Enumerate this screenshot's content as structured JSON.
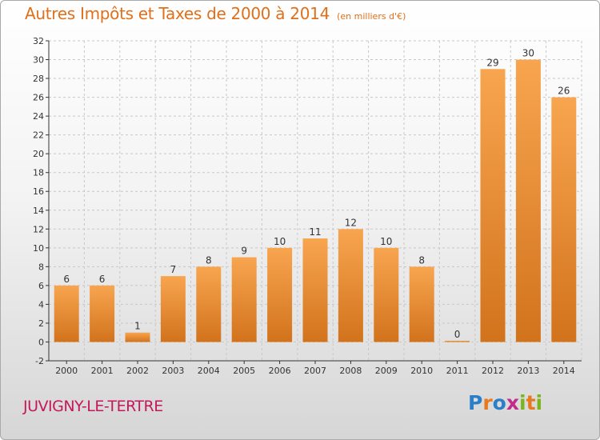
{
  "title": "Autres Impôts et Taxes de 2000 à 2014",
  "unit_note": "(en milliers d'€)",
  "town_name": "JUVIGNY-LE-TERTRE",
  "logo_text": "Proxiti",
  "colors": {
    "title": "#df6f1b",
    "town": "#c4185b",
    "bar_light": "#f8a550",
    "bar_dark": "#d2731c",
    "grid": "#c8c8c8",
    "axis": "#333333"
  },
  "chart_data": {
    "type": "bar",
    "title": "Autres Impôts et Taxes de 2000 à 2014",
    "ylabel": "",
    "xlabel": "",
    "categories": [
      "2000",
      "2001",
      "2002",
      "2003",
      "2004",
      "2005",
      "2006",
      "2007",
      "2008",
      "2009",
      "2010",
      "2011",
      "2012",
      "2013",
      "2014"
    ],
    "values": [
      6,
      6,
      1,
      7,
      8,
      9,
      10,
      11,
      12,
      10,
      8,
      0,
      29,
      30,
      26
    ],
    "ylim": [
      -2,
      32
    ],
    "yticks": [
      -2,
      0,
      2,
      4,
      6,
      8,
      10,
      12,
      14,
      16,
      18,
      20,
      22,
      24,
      26,
      28,
      30,
      32
    ],
    "grid": "horizontal dashed",
    "legend": "none"
  }
}
